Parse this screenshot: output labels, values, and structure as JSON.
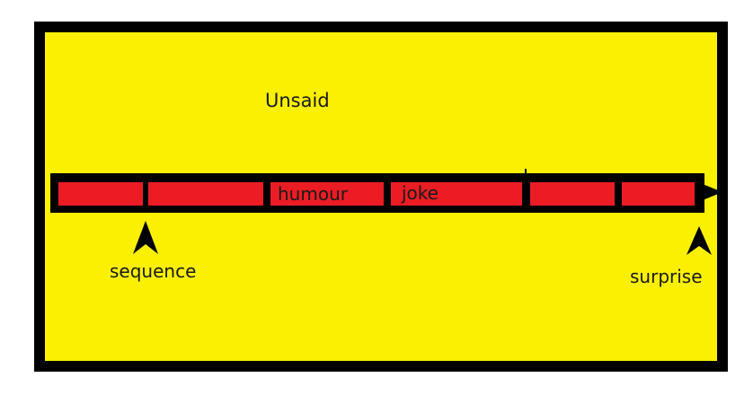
{
  "diagram": {
    "region_label": "Unsaid",
    "segments": [
      {
        "label": ""
      },
      {
        "label": ""
      },
      {
        "label": "humour"
      },
      {
        "label": "joke"
      },
      {
        "label": ""
      },
      {
        "label": ""
      }
    ],
    "markers": {
      "start": "sequence",
      "end": "surprise"
    }
  },
  "colors": {
    "background": "#fbf000",
    "border": "#000000",
    "segment_fill": "#ec1c24",
    "text": "#1a1a1a"
  }
}
